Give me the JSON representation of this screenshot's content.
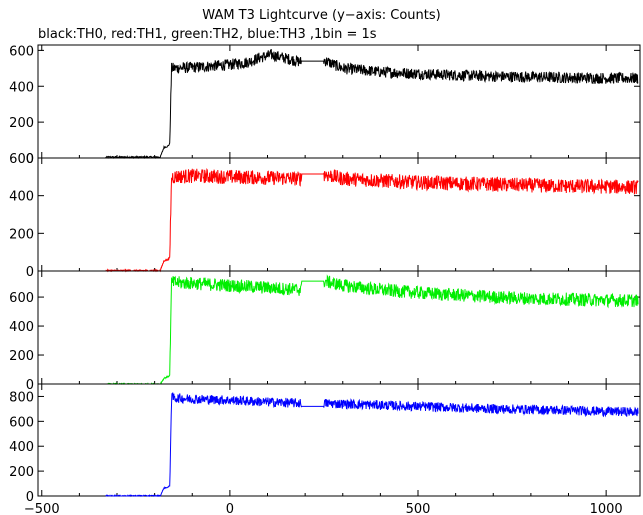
{
  "chart_data": {
    "type": "line",
    "title": "WAM T3 Lightcurve (y−axis: Counts)",
    "subtitle": "black:TH0, red:TH1, green:TH2, blue:TH3 ,1bin = 1s",
    "xlim": [
      -510,
      1090
    ],
    "x_ticks": [
      -500,
      0,
      500,
      1000
    ],
    "grid": false,
    "series": [
      {
        "name": "TH0",
        "color": "#000000",
        "ylim": [
          0,
          630
        ],
        "y_ticks": [
          0,
          200,
          400,
          600
        ],
        "points": [
          [
            -330,
            5
          ],
          [
            -185,
            5
          ],
          [
            -175,
            60
          ],
          [
            -165,
            65
          ],
          [
            -160,
            80
          ],
          [
            -155,
            500
          ],
          [
            -100,
            505
          ],
          [
            -50,
            512
          ],
          [
            0,
            520
          ],
          [
            50,
            535
          ],
          [
            80,
            560
          ],
          [
            110,
            575
          ],
          [
            140,
            560
          ],
          [
            170,
            545
          ],
          [
            190,
            535
          ],
          [
            250,
            545
          ],
          [
            300,
            500
          ],
          [
            400,
            480
          ],
          [
            500,
            470
          ],
          [
            600,
            462
          ],
          [
            700,
            455
          ],
          [
            800,
            452
          ],
          [
            900,
            448
          ],
          [
            1000,
            445
          ],
          [
            1085,
            445
          ]
        ],
        "noise": 45,
        "gap": [
          190,
          250,
          540
        ]
      },
      {
        "name": "TH1",
        "color": "#ff0000",
        "ylim": [
          0,
          600
        ],
        "y_ticks": [
          0,
          200,
          400,
          600
        ],
        "points": [
          [
            -330,
            2
          ],
          [
            -185,
            2
          ],
          [
            -175,
            55
          ],
          [
            -165,
            60
          ],
          [
            -160,
            70
          ],
          [
            -155,
            500
          ],
          [
            -100,
            505
          ],
          [
            0,
            500
          ],
          [
            100,
            495
          ],
          [
            190,
            490
          ],
          [
            250,
            515
          ],
          [
            300,
            490
          ],
          [
            400,
            480
          ],
          [
            500,
            470
          ],
          [
            600,
            465
          ],
          [
            700,
            460
          ],
          [
            800,
            455
          ],
          [
            900,
            450
          ],
          [
            1000,
            448
          ],
          [
            1085,
            445
          ]
        ],
        "noise": 55,
        "gap": [
          190,
          250,
          515
        ]
      },
      {
        "name": "TH2",
        "color": "#00ee00",
        "ylim": [
          0,
          780
        ],
        "y_ticks": [
          0,
          200,
          400,
          600
        ],
        "points": [
          [
            -330,
            0
          ],
          [
            -185,
            0
          ],
          [
            -175,
            40
          ],
          [
            -165,
            50
          ],
          [
            -160,
            60
          ],
          [
            -155,
            700
          ],
          [
            -100,
            695
          ],
          [
            0,
            680
          ],
          [
            100,
            665
          ],
          [
            190,
            650
          ],
          [
            250,
            710
          ],
          [
            300,
            680
          ],
          [
            400,
            650
          ],
          [
            500,
            630
          ],
          [
            600,
            615
          ],
          [
            700,
            600
          ],
          [
            800,
            590
          ],
          [
            900,
            585
          ],
          [
            1000,
            578
          ],
          [
            1085,
            575
          ]
        ],
        "noise": 65,
        "gap": [
          190,
          250,
          710
        ]
      },
      {
        "name": "TH3",
        "color": "#0000ff",
        "ylim": [
          0,
          900
        ],
        "y_ticks": [
          0,
          200,
          400,
          600,
          800
        ],
        "points": [
          [
            -330,
            2
          ],
          [
            -185,
            2
          ],
          [
            -175,
            65
          ],
          [
            -165,
            70
          ],
          [
            -160,
            80
          ],
          [
            -155,
            790
          ],
          [
            -100,
            780
          ],
          [
            0,
            770
          ],
          [
            100,
            755
          ],
          [
            190,
            745
          ],
          [
            250,
            745
          ],
          [
            300,
            740
          ],
          [
            400,
            730
          ],
          [
            500,
            720
          ],
          [
            600,
            710
          ],
          [
            700,
            700
          ],
          [
            800,
            695
          ],
          [
            900,
            688
          ],
          [
            1000,
            680
          ],
          [
            1085,
            675
          ]
        ],
        "noise": 55,
        "gap": [
          190,
          250,
          720
        ]
      }
    ]
  }
}
